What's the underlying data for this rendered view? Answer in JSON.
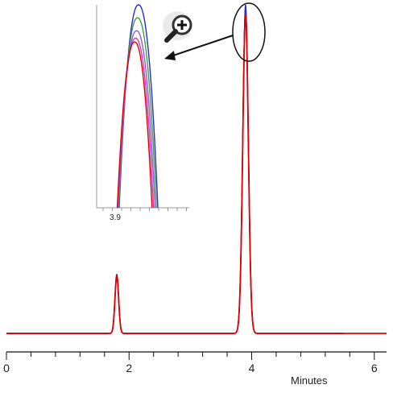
{
  "chart_data": {
    "type": "line",
    "xlabel": "Minutes",
    "ylabel": "",
    "xlim": [
      0,
      6.2
    ],
    "ylim": [
      0,
      1.0
    ],
    "x_ticks": [
      0,
      2,
      4,
      6
    ],
    "minor_ticks_per_major": 5,
    "legend": "none",
    "grid": false,
    "peaks": [
      {
        "retention_time": 1.8,
        "relative_height": 0.18
      },
      {
        "retention_time": 3.9,
        "relative_height": 1.0
      }
    ],
    "series": [
      {
        "color": "#e00000",
        "x": [
          0,
          1.7,
          1.8,
          1.9,
          3.7,
          3.85,
          3.9,
          3.95,
          4.1,
          6.2
        ],
        "y": [
          0,
          0,
          0.16,
          0,
          0,
          0.7,
          0.97,
          0.7,
          0,
          0
        ]
      },
      {
        "color": "#2a2ad0",
        "x": [
          0,
          1.7,
          1.8,
          1.9,
          3.7,
          3.85,
          3.9,
          3.95,
          4.1,
          5.5
        ],
        "y": [
          0,
          0,
          0.18,
          0,
          0,
          0.72,
          1.0,
          0.72,
          0,
          0
        ]
      },
      {
        "color": "#7a4fd0",
        "x": [
          0,
          1.7,
          1.8,
          1.9,
          3.7,
          3.85,
          3.9,
          3.95,
          4.1,
          5.5
        ],
        "y": [
          0,
          0,
          0.17,
          0,
          0,
          0.71,
          0.98,
          0.71,
          0,
          0
        ]
      },
      {
        "color": "#3fa03f",
        "x": [
          0,
          1.7,
          1.8,
          1.9,
          3.7,
          3.85,
          3.9,
          3.95,
          4.1,
          5.5
        ],
        "y": [
          0,
          0,
          0.17,
          0,
          0,
          0.71,
          0.99,
          0.71,
          0,
          0
        ]
      }
    ],
    "inset": {
      "description_visible": "zoom of main peak apex",
      "x_tick": "3.9",
      "traces": [
        {
          "color": "#2a2ad0",
          "rel_height": 1.0
        },
        {
          "color": "#3fa03f",
          "rel_height": 0.93
        },
        {
          "color": "#8e5bd6",
          "rel_height": 0.86
        },
        {
          "color": "#c83cc8",
          "rel_height": 0.82
        },
        {
          "color": "#e00000",
          "rel_height": 0.8
        }
      ]
    },
    "zoom_icon": "magnifier-plus-icon",
    "annotation": "arrow from circled peak apex to inset"
  }
}
